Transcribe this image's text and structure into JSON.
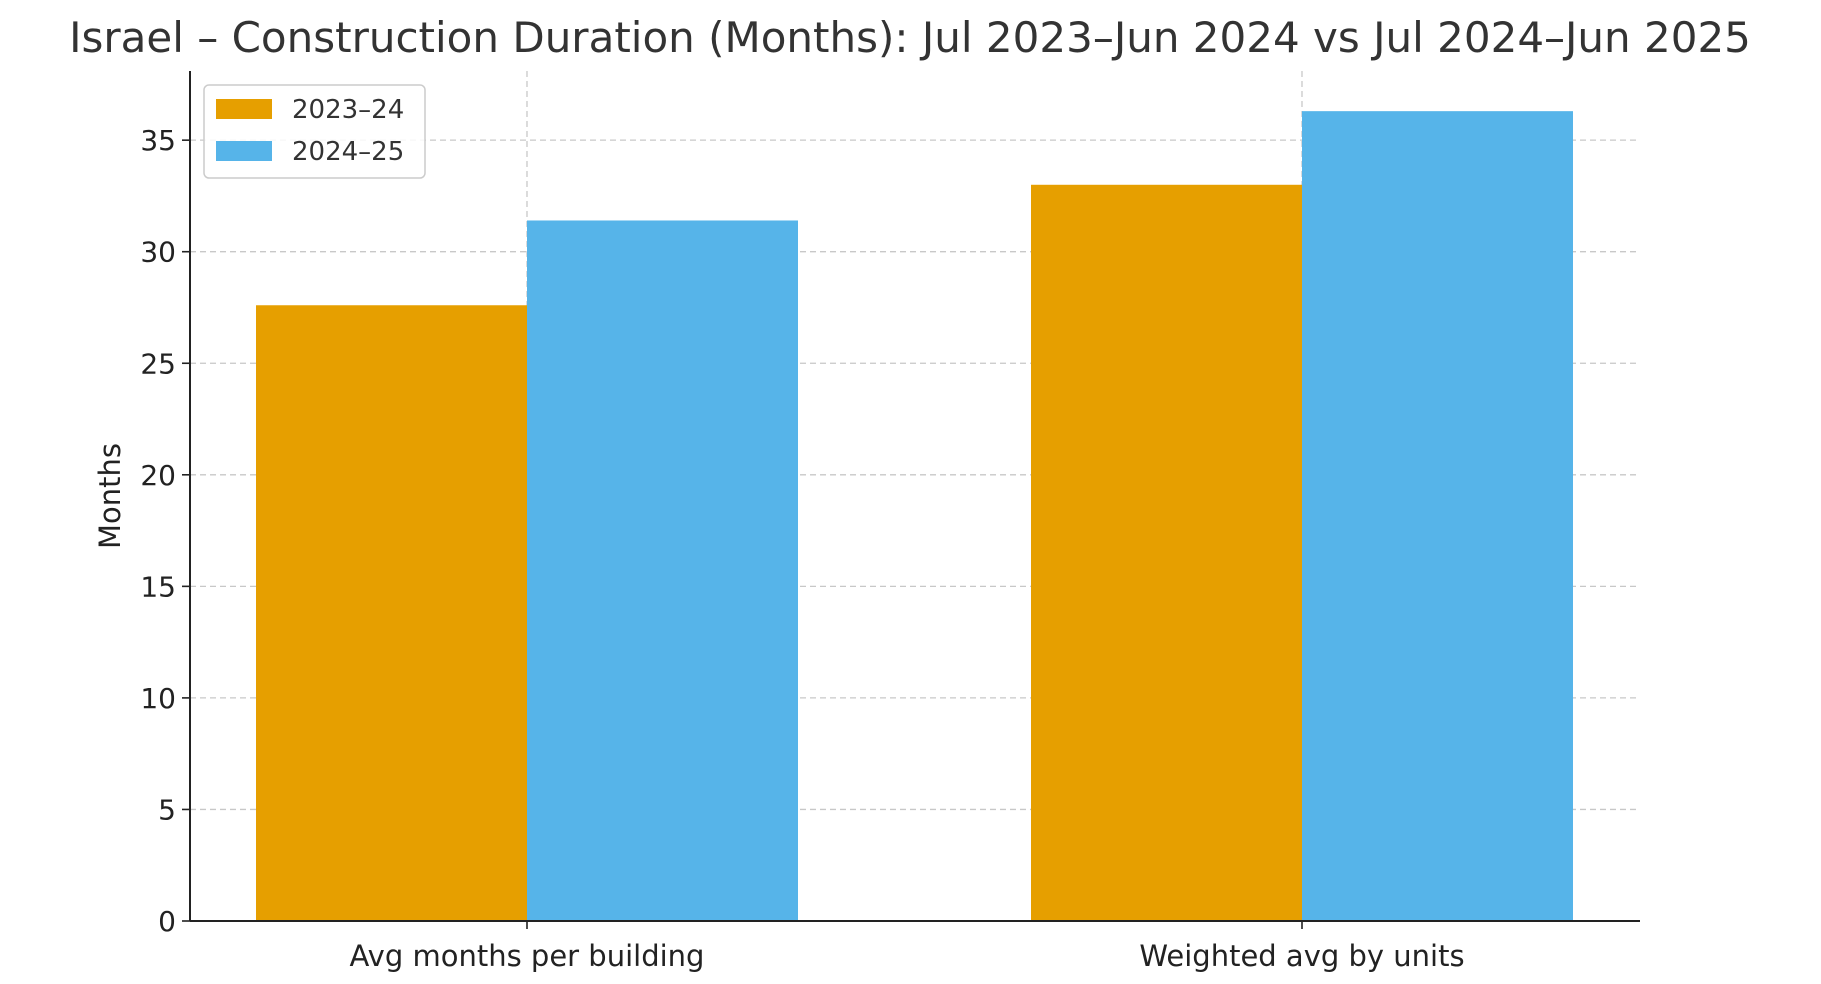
{
  "chart_data": {
    "type": "bar",
    "title": "Israel – Construction Duration (Months): Jul 2023–Jun 2024 vs Jul 2024–Jun 2025",
    "xlabel": "",
    "ylabel": "Months",
    "categories": [
      "Avg months per building",
      "Weighted avg by units"
    ],
    "series": [
      {
        "name": "2023–24",
        "values": [
          27.6,
          33.0
        ],
        "color": "#E69F00"
      },
      {
        "name": "2024–25",
        "values": [
          31.4,
          36.3
        ],
        "color": "#56B4E9"
      }
    ],
    "ylim": [
      0,
      38.1
    ],
    "yticks": [
      0,
      5,
      10,
      15,
      20,
      25,
      30,
      35
    ],
    "grid": true,
    "legend_position": "top-left"
  }
}
